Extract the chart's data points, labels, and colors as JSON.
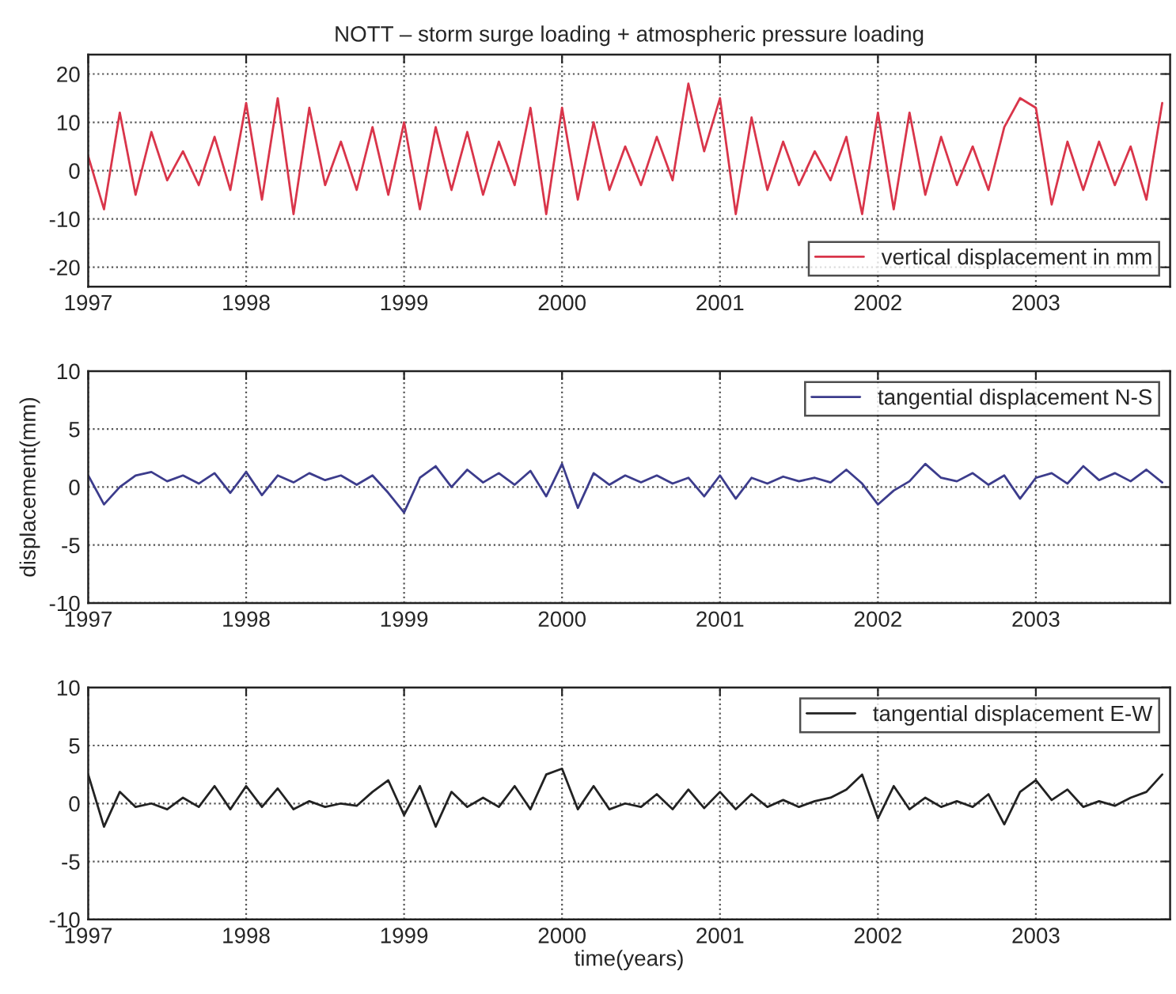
{
  "chart_data": [
    {
      "type": "line",
      "title": "NOTT – storm surge loading + atmospheric pressure loading",
      "x": [
        1997.0,
        1997.1,
        1997.2,
        1997.3,
        1997.4,
        1997.5,
        1997.6,
        1997.7,
        1997.8,
        1997.9,
        1998.0,
        1998.1,
        1998.2,
        1998.3,
        1998.4,
        1998.5,
        1998.6,
        1998.7,
        1998.8,
        1998.9,
        1999.0,
        1999.1,
        1999.2,
        1999.3,
        1999.4,
        1999.5,
        1999.6,
        1999.7,
        1999.8,
        1999.9,
        2000.0,
        2000.1,
        2000.2,
        2000.3,
        2000.4,
        2000.5,
        2000.6,
        2000.7,
        2000.8,
        2000.9,
        2001.0,
        2001.1,
        2001.2,
        2001.3,
        2001.4,
        2001.5,
        2001.6,
        2001.7,
        2001.8,
        2001.9,
        2002.0,
        2002.1,
        2002.2,
        2002.3,
        2002.4,
        2002.5,
        2002.6,
        2002.7,
        2002.8,
        2002.9,
        2003.0,
        2003.1,
        2003.2,
        2003.3,
        2003.4,
        2003.5,
        2003.6,
        2003.7,
        2003.8
      ],
      "series": [
        {
          "name": "vertical displacement in mm",
          "color": "#d9354a",
          "values": [
            3,
            -8,
            12,
            -5,
            8,
            -2,
            4,
            -3,
            7,
            -4,
            14,
            -6,
            15,
            -9,
            13,
            -3,
            6,
            -4,
            9,
            -5,
            10,
            -8,
            9,
            -4,
            8,
            -5,
            6,
            -3,
            13,
            -9,
            13,
            -6,
            10,
            -4,
            5,
            -3,
            7,
            -2,
            18,
            4,
            15,
            -9,
            11,
            -4,
            6,
            -3,
            4,
            -2,
            7,
            -9,
            12,
            -8,
            12,
            -5,
            7,
            -3,
            5,
            -4,
            9,
            15,
            13,
            -7,
            6,
            -4,
            6,
            -3,
            5,
            -6,
            14
          ]
        }
      ],
      "xlim": [
        1997,
        2003.85
      ],
      "xticks": [
        1997,
        1998,
        1999,
        2000,
        2001,
        2002,
        2003
      ],
      "ylim": [
        -24,
        24
      ],
      "yticks": [
        -20,
        -10,
        0,
        10,
        20
      ],
      "grid": true,
      "legend": "bottom right"
    },
    {
      "type": "line",
      "ylabel": "displacement(mm)",
      "x": [
        1997.0,
        1997.1,
        1997.2,
        1997.3,
        1997.4,
        1997.5,
        1997.6,
        1997.7,
        1997.8,
        1997.9,
        1998.0,
        1998.1,
        1998.2,
        1998.3,
        1998.4,
        1998.5,
        1998.6,
        1998.7,
        1998.8,
        1998.9,
        1999.0,
        1999.1,
        1999.2,
        1999.3,
        1999.4,
        1999.5,
        1999.6,
        1999.7,
        1999.8,
        1999.9,
        2000.0,
        2000.1,
        2000.2,
        2000.3,
        2000.4,
        2000.5,
        2000.6,
        2000.7,
        2000.8,
        2000.9,
        2001.0,
        2001.1,
        2001.2,
        2001.3,
        2001.4,
        2001.5,
        2001.6,
        2001.7,
        2001.8,
        2001.9,
        2002.0,
        2002.1,
        2002.2,
        2002.3,
        2002.4,
        2002.5,
        2002.6,
        2002.7,
        2002.8,
        2002.9,
        2003.0,
        2003.1,
        2003.2,
        2003.3,
        2003.4,
        2003.5,
        2003.6,
        2003.7,
        2003.8
      ],
      "series": [
        {
          "name": "tangential displacement N-S",
          "color": "#3c3c8c",
          "values": [
            1,
            -1.5,
            0,
            1,
            1.3,
            0.5,
            1,
            0.3,
            1.2,
            -0.5,
            1.3,
            -0.7,
            1,
            0.4,
            1.2,
            0.6,
            1,
            0.2,
            1,
            -0.5,
            -2.2,
            0.8,
            1.8,
            0,
            1.5,
            0.4,
            1.2,
            0.2,
            1.4,
            -0.8,
            2,
            -1.8,
            1.2,
            0.2,
            1,
            0.4,
            1,
            0.3,
            0.8,
            -0.8,
            1,
            -1,
            0.8,
            0.3,
            0.9,
            0.5,
            0.8,
            0.4,
            1.5,
            0.3,
            -1.5,
            -0.3,
            0.5,
            2,
            0.8,
            0.5,
            1.2,
            0.2,
            1,
            -1,
            0.8,
            1.2,
            0.3,
            1.8,
            0.6,
            1.2,
            0.5,
            1.5,
            0.4
          ]
        }
      ],
      "xlim": [
        1997,
        2003.85
      ],
      "xticks": [
        1997,
        1998,
        1999,
        2000,
        2001,
        2002,
        2003
      ],
      "ylim": [
        -10,
        10
      ],
      "yticks": [
        -10,
        -5,
        0,
        5,
        10
      ],
      "grid": true,
      "legend": "top right"
    },
    {
      "type": "line",
      "xlabel": "time(years)",
      "x": [
        1997.0,
        1997.1,
        1997.2,
        1997.3,
        1997.4,
        1997.5,
        1997.6,
        1997.7,
        1997.8,
        1997.9,
        1998.0,
        1998.1,
        1998.2,
        1998.3,
        1998.4,
        1998.5,
        1998.6,
        1998.7,
        1998.8,
        1998.9,
        1999.0,
        1999.1,
        1999.2,
        1999.3,
        1999.4,
        1999.5,
        1999.6,
        1999.7,
        1999.8,
        1999.9,
        2000.0,
        2000.1,
        2000.2,
        2000.3,
        2000.4,
        2000.5,
        2000.6,
        2000.7,
        2000.8,
        2000.9,
        2001.0,
        2001.1,
        2001.2,
        2001.3,
        2001.4,
        2001.5,
        2001.6,
        2001.7,
        2001.8,
        2001.9,
        2002.0,
        2002.1,
        2002.2,
        2002.3,
        2002.4,
        2002.5,
        2002.6,
        2002.7,
        2002.8,
        2002.9,
        2003.0,
        2003.1,
        2003.2,
        2003.3,
        2003.4,
        2003.5,
        2003.6,
        2003.7,
        2003.8
      ],
      "series": [
        {
          "name": "tangential displacement E-W",
          "color": "#222222",
          "values": [
            2.5,
            -2,
            1,
            -0.3,
            0,
            -0.5,
            0.5,
            -0.3,
            1.5,
            -0.5,
            1.5,
            -0.3,
            1.3,
            -0.5,
            0.2,
            -0.3,
            0,
            -0.2,
            1,
            2,
            -1,
            1.5,
            -2,
            1,
            -0.3,
            0.5,
            -0.3,
            1.5,
            -0.5,
            2.5,
            3,
            -0.5,
            1.5,
            -0.5,
            0,
            -0.3,
            0.8,
            -0.5,
            1.2,
            -0.4,
            1,
            -0.5,
            0.8,
            -0.3,
            0.3,
            -0.3,
            0.2,
            0.5,
            1.2,
            2.5,
            -1.3,
            1.5,
            -0.5,
            0.5,
            -0.3,
            0.2,
            -0.3,
            0.8,
            -1.8,
            1,
            2,
            0.3,
            1.2,
            -0.3,
            0.2,
            -0.2,
            0.5,
            1,
            2.5
          ]
        }
      ],
      "xlim": [
        1997,
        2003.85
      ],
      "xticks": [
        1997,
        1998,
        1999,
        2000,
        2001,
        2002,
        2003
      ],
      "ylim": [
        -10,
        10
      ],
      "yticks": [
        -10,
        -5,
        0,
        5,
        10
      ],
      "grid": true,
      "legend": "top right"
    }
  ]
}
